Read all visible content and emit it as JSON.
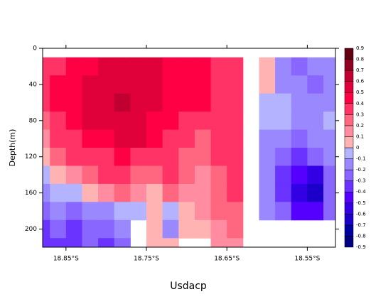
{
  "chart_data": {
    "type": "heatmap",
    "title": "Usdacp",
    "y_label": "Depth(m)",
    "x": [
      18.88,
      18.86,
      18.84,
      18.82,
      18.8,
      18.78,
      18.76,
      18.74,
      18.72,
      18.7,
      18.68,
      18.66,
      18.64,
      18.62,
      18.6,
      18.58,
      18.56,
      18.54,
      18.52
    ],
    "y": [
      20,
      40,
      60,
      80,
      100,
      120,
      140,
      160,
      180,
      200,
      220
    ],
    "z": [
      [
        0.35,
        0.35,
        0.4,
        0.45,
        0.55,
        0.55,
        0.55,
        0.5,
        0.45,
        0.45,
        0.4,
        0.35,
        0.35,
        null,
        0.05,
        -0.15,
        -0.25,
        -0.2,
        -0.15
      ],
      [
        0.35,
        0.4,
        0.45,
        0.5,
        0.55,
        0.55,
        0.55,
        0.5,
        0.45,
        0.4,
        0.45,
        0.35,
        0.35,
        null,
        0.05,
        -0.15,
        -0.2,
        -0.25,
        -0.2
      ],
      [
        0.35,
        0.4,
        0.45,
        0.5,
        0.55,
        0.6,
        0.55,
        0.5,
        0.45,
        0.4,
        0.4,
        0.35,
        0.3,
        null,
        -0.05,
        -0.1,
        -0.15,
        -0.2,
        -0.15
      ],
      [
        0.25,
        0.35,
        0.45,
        0.5,
        0.5,
        0.55,
        0.5,
        0.45,
        0.4,
        0.35,
        0.3,
        0.35,
        0.3,
        null,
        -0.05,
        -0.1,
        -0.15,
        -0.15,
        -0.1
      ],
      [
        0.15,
        0.3,
        0.35,
        0.4,
        0.45,
        0.5,
        0.5,
        0.4,
        0.35,
        0.3,
        0.25,
        0.3,
        0.3,
        null,
        -0.15,
        -0.2,
        -0.25,
        -0.2,
        -0.15
      ],
      [
        0.05,
        0.2,
        0.3,
        0.35,
        0.35,
        0.4,
        0.35,
        0.35,
        0.3,
        0.25,
        0.2,
        0.3,
        0.3,
        null,
        -0.2,
        -0.3,
        -0.35,
        -0.3,
        -0.2
      ],
      [
        -0.1,
        0.05,
        0.15,
        0.25,
        0.3,
        0.3,
        0.25,
        0.25,
        0.3,
        0.2,
        0.15,
        0.25,
        0.3,
        null,
        -0.2,
        -0.35,
        -0.45,
        -0.55,
        -0.3
      ],
      [
        -0.15,
        -0.1,
        -0.05,
        0.05,
        0.15,
        0.2,
        0.15,
        0.05,
        0.2,
        0.15,
        0.15,
        0.25,
        0.3,
        null,
        -0.2,
        -0.35,
        -0.55,
        -0.65,
        -0.3
      ],
      [
        -0.25,
        -0.2,
        -0.3,
        -0.15,
        -0.2,
        -0.05,
        -0.1,
        0.05,
        -0.1,
        0.05,
        0.1,
        0.2,
        0.25,
        null,
        -0.2,
        -0.3,
        -0.45,
        -0.5,
        -0.25
      ],
      [
        -0.35,
        -0.3,
        -0.35,
        -0.25,
        -0.3,
        -0.2,
        null,
        0.05,
        -0.15,
        0.05,
        0.05,
        0.15,
        0.2,
        null,
        null,
        null,
        null,
        null,
        null
      ],
      [
        -0.4,
        -0.35,
        -0.4,
        -0.3,
        -0.35,
        -0.25,
        null,
        0.05,
        0.05,
        null,
        null,
        0.1,
        0.15,
        null,
        null,
        null,
        null,
        null,
        null
      ]
    ],
    "xlim": [
      18.879,
      18.515
    ],
    "xticks": [
      {
        "value": 18.85,
        "label": "18.85°S"
      },
      {
        "value": 18.75,
        "label": "18.75°S"
      },
      {
        "value": 18.65,
        "label": "18.65°S"
      },
      {
        "value": 18.55,
        "label": "18.55°S"
      }
    ],
    "ylim": [
      0,
      220
    ],
    "yticks": [
      0,
      40,
      80,
      120,
      160,
      200
    ],
    "y_reversed": true,
    "levels": [
      -0.9,
      -0.8,
      -0.7,
      -0.6,
      -0.5,
      -0.4,
      -0.3,
      -0.2,
      -0.1,
      0,
      0.1,
      0.2,
      0.3,
      0.4,
      0.5,
      0.6,
      0.7,
      0.8,
      0.9
    ],
    "colors": [
      "#000080",
      "#0000a0",
      "#1a00c8",
      "#3300e6",
      "#5500ff",
      "#6a33ff",
      "#8866ff",
      "#9a88ff",
      "#b3b3ff",
      "#ffb3b3",
      "#ff8ca0",
      "#ff6680",
      "#ff3366",
      "#ff0044",
      "#e0003a",
      "#c00030",
      "#900020",
      "#600010"
    ]
  }
}
